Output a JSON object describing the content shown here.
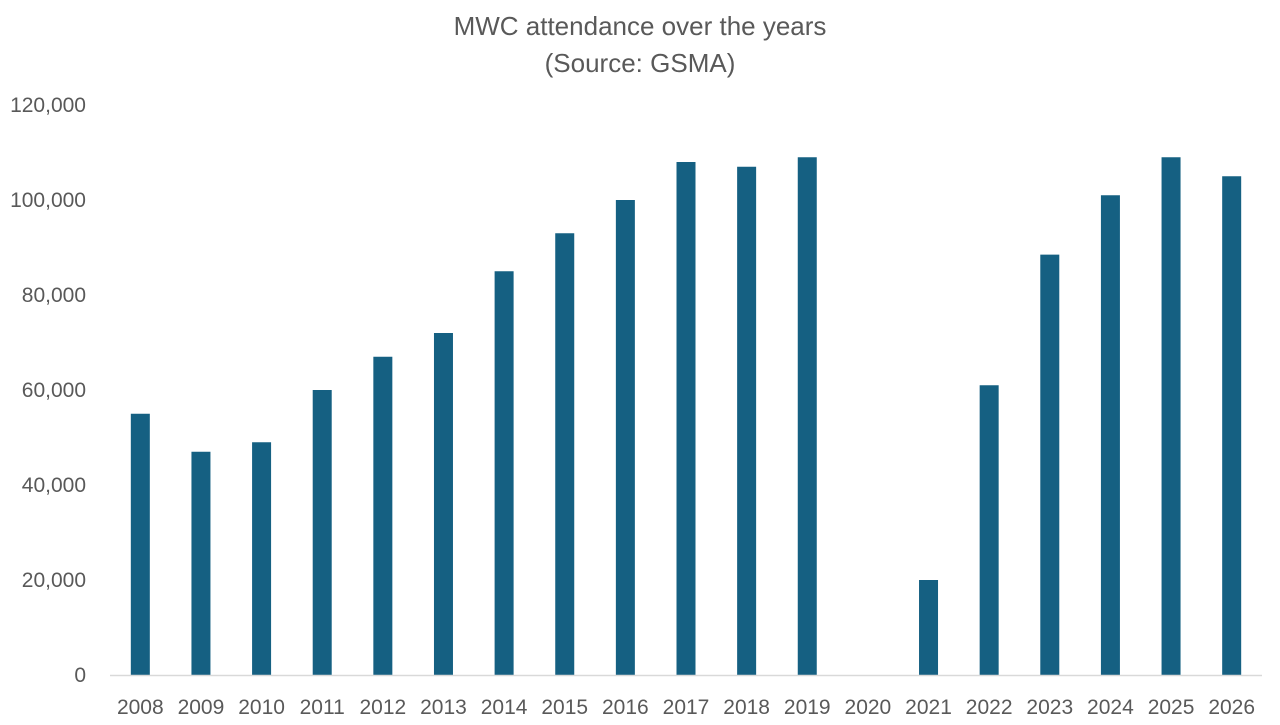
{
  "chart_data": {
    "type": "bar",
    "title": "MWC attendance over the years",
    "subtitle": "(Source: GSMA)",
    "xlabel": "",
    "ylabel": "",
    "categories": [
      "2008",
      "2009",
      "2010",
      "2011",
      "2012",
      "2013",
      "2014",
      "2015",
      "2016",
      "2017",
      "2018",
      "2019",
      "2020",
      "2021",
      "2022",
      "2023",
      "2024",
      "2025",
      "2026"
    ],
    "values": [
      55000,
      47000,
      49000,
      60000,
      67000,
      72000,
      85000,
      93000,
      100000,
      108000,
      107000,
      109000,
      0,
      20000,
      61000,
      88500,
      101000,
      109000,
      105000
    ],
    "ylim": [
      0,
      120000
    ],
    "yticks": [
      "0",
      "20,000",
      "40,000",
      "60,000",
      "80,000",
      "100,000",
      "120,000"
    ],
    "ytick_values": [
      0,
      20000,
      40000,
      60000,
      80000,
      100000,
      120000
    ],
    "grid": false,
    "legend": "none",
    "bar_color": "#156082",
    "axis_color": "#d9d9d9"
  }
}
